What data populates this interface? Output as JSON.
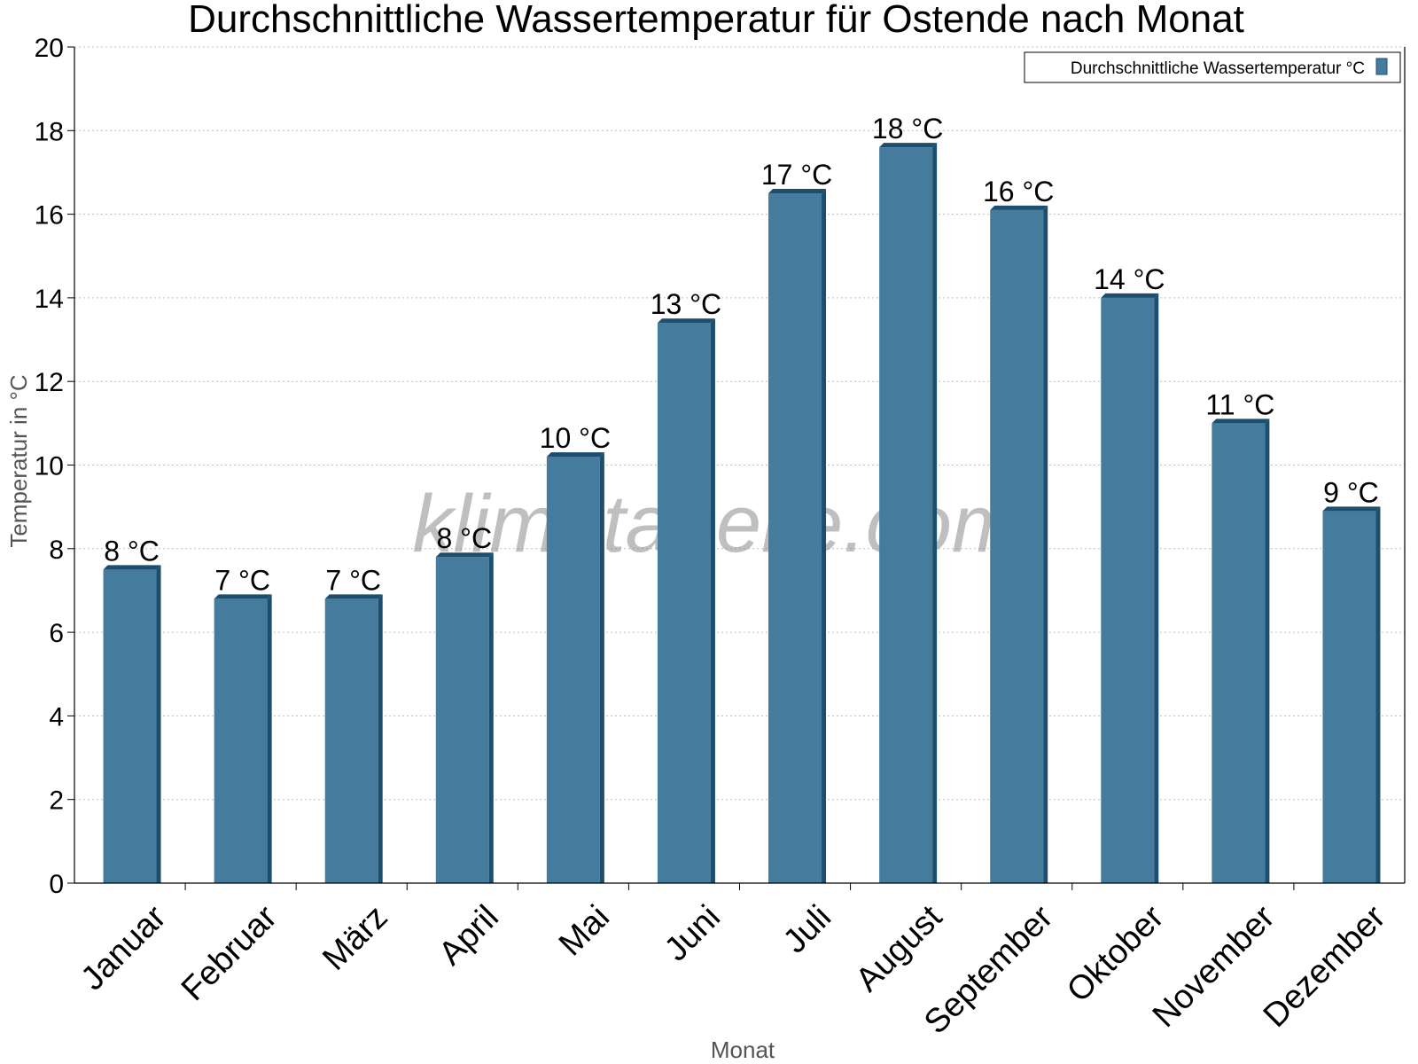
{
  "chart_data": {
    "type": "bar",
    "title": "Durchschnittliche Wassertemperatur für Ostende nach Monat",
    "xlabel": "Monat",
    "ylabel": "Temperatur in °C",
    "categories": [
      "Januar",
      "Februar",
      "März",
      "April",
      "Mai",
      "Juni",
      "Juli",
      "August",
      "September",
      "Oktober",
      "November",
      "Dezember"
    ],
    "series": [
      {
        "name": "Durchschnittliche Wassertemperatur °C",
        "values": [
          7.5,
          6.8,
          6.8,
          7.8,
          10.2,
          13.4,
          16.5,
          17.6,
          16.1,
          14.0,
          11.0,
          8.9
        ],
        "labels": [
          "8 °C",
          "7 °C",
          "7 °C",
          "8 °C",
          "10 °C",
          "13 °C",
          "17 °C",
          "18 °C",
          "16 °C",
          "14 °C",
          "11 °C",
          "9 °C"
        ],
        "color": "#457b9d",
        "shade_color": "#1d4e6e"
      }
    ],
    "ylim": [
      0,
      20
    ],
    "yticks": [
      0,
      2,
      4,
      6,
      8,
      10,
      12,
      14,
      16,
      18,
      20
    ],
    "grid": true,
    "legend_position": "top-right"
  },
  "watermark": "klimatabelle.com"
}
